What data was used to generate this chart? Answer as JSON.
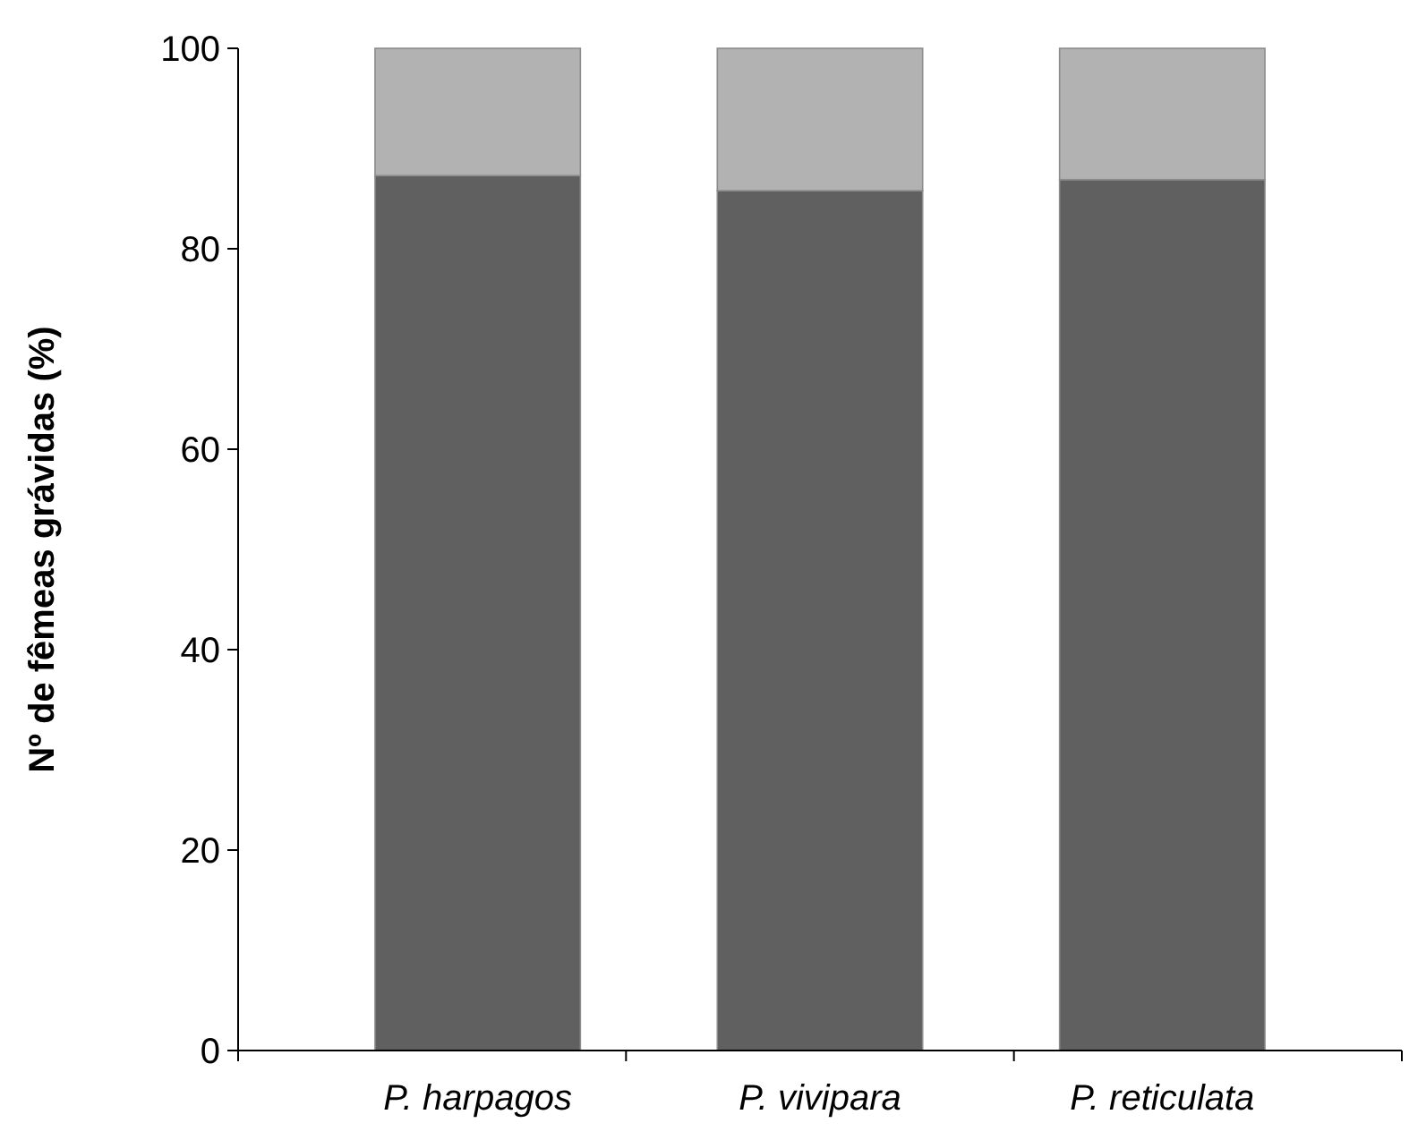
{
  "chart_data": {
    "type": "bar",
    "stacked": true,
    "ylabel": "Nº de fêmeas grávidas (%)",
    "categories": [
      "P. harpagos",
      "P. vivipara",
      "P. reticulata"
    ],
    "series": [
      {
        "color": "#606060",
        "values": [
          87.3,
          85.8,
          86.9
        ]
      },
      {
        "color": "#b2b2b2",
        "values": [
          12.7,
          14.2,
          13.1
        ]
      }
    ],
    "ylim": [
      0,
      100
    ],
    "yticks": [
      0,
      20,
      40,
      60,
      80,
      100
    ],
    "grid": false
  }
}
